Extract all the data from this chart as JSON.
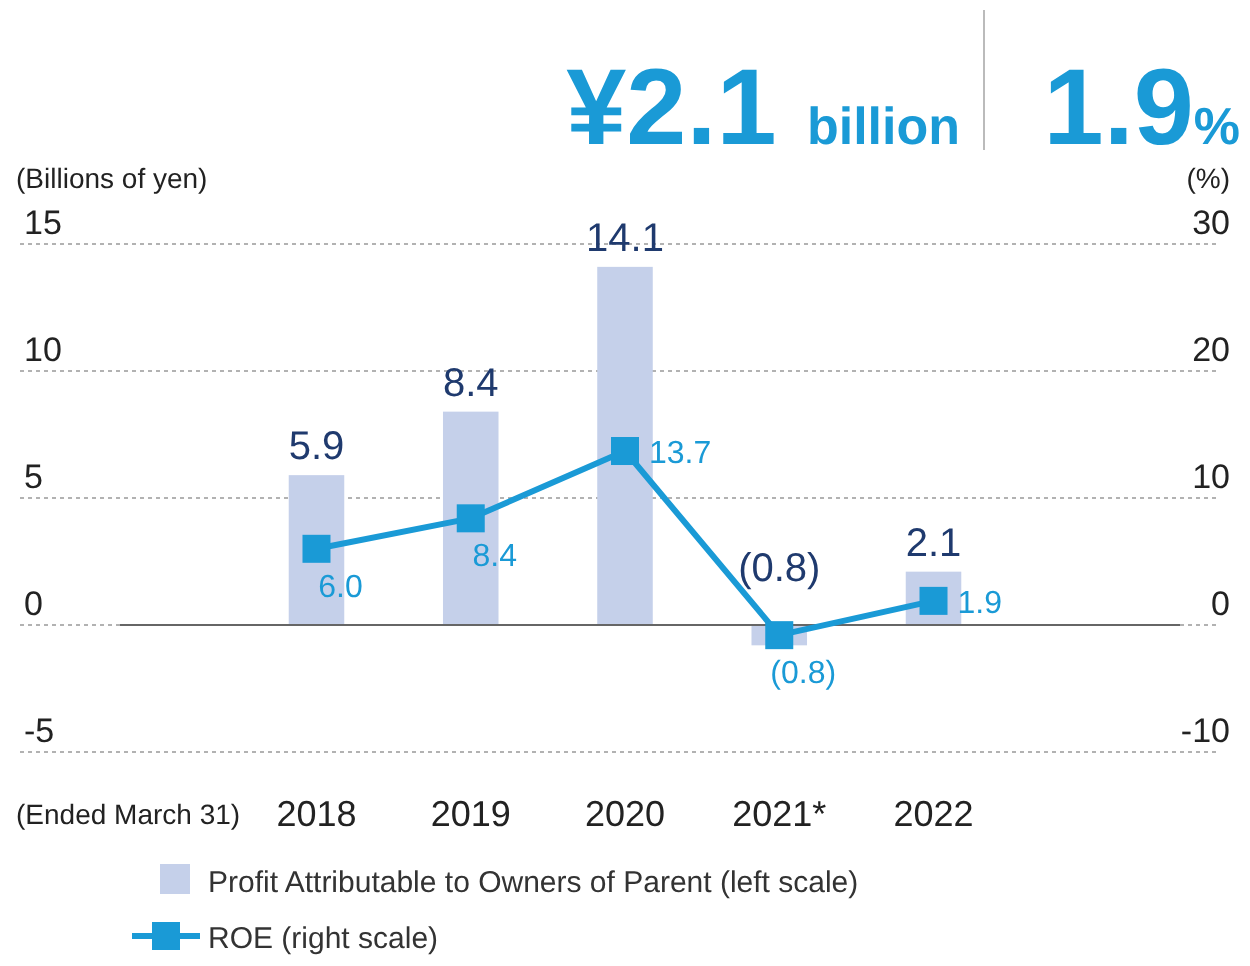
{
  "chart_data": {
    "type": "bar",
    "title": "¥2.1 billion",
    "subtitle": "1.9%",
    "ylabel": "(Billions of yen)",
    "y2label": "(%)",
    "xlabel": "(Ended March 31)",
    "categories": [
      "2018",
      "2019",
      "2020",
      "2021*",
      "2022"
    ],
    "series": [
      {
        "name": "Profit Attributable to Owners of Parent (left scale)",
        "color": "#c5d0ea",
        "values": [
          5.9,
          8.4,
          14.1,
          -0.8,
          2.1
        ],
        "value_labels": [
          "5.9",
          "8.4",
          "14.1",
          "(0.8)",
          "2.1"
        ]
      },
      {
        "name": "ROE (right scale)",
        "type": "line",
        "axis": "y2",
        "color": "#1a9ad6",
        "marker": "square",
        "values": [
          6.0,
          8.4,
          13.7,
          -0.8,
          1.9
        ],
        "value_labels": [
          "6.0",
          "8.4",
          "13.7",
          "(0.8)",
          "1.9"
        ]
      }
    ],
    "ylim": [
      -5,
      15
    ],
    "yticks": [
      -5,
      0,
      5,
      10,
      15
    ],
    "y2lim": [
      -10,
      30
    ],
    "y2ticks": [
      -10,
      0,
      10,
      20,
      30
    ],
    "grid": "y",
    "legend": "bottom"
  }
}
